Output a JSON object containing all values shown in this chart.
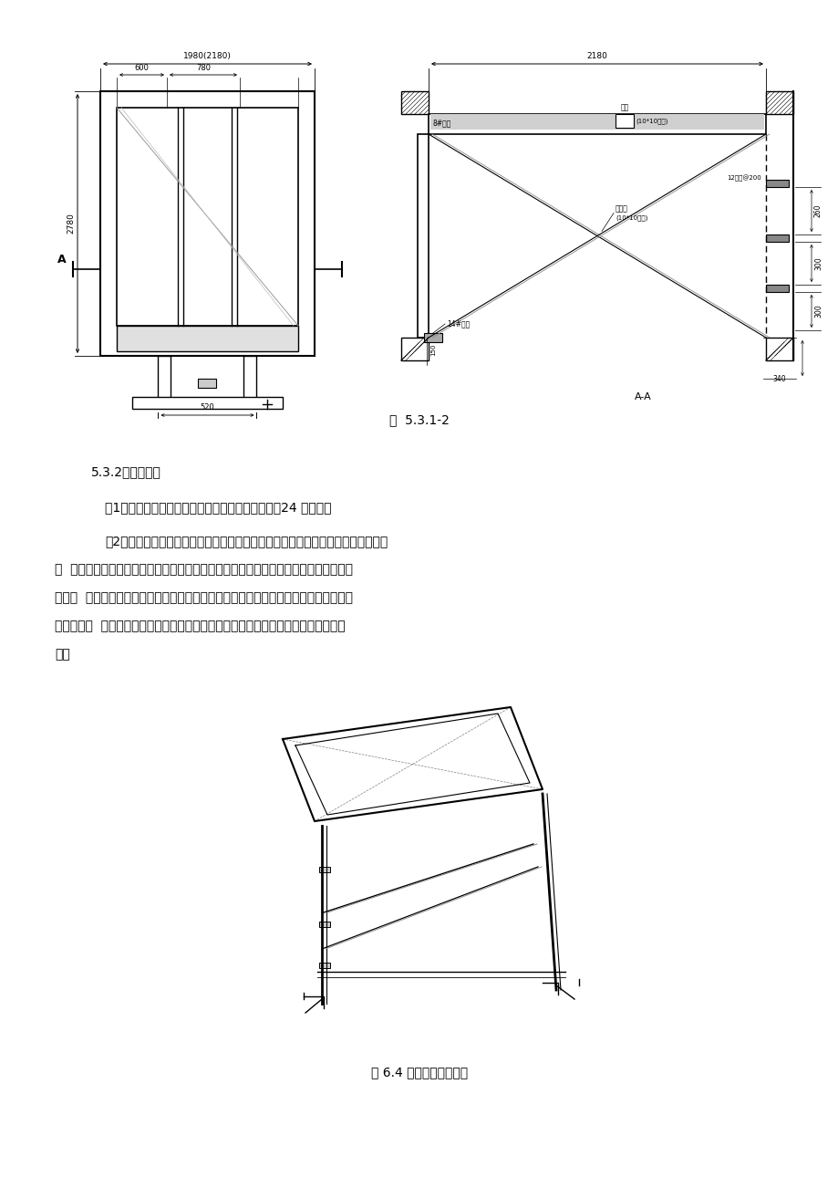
{
  "page_bg": "#ffffff",
  "fig_title1": "图  5.3.1-2",
  "fig_title2": "图 6.4 整体支架结构简图",
  "section_title": "5.3.2注意事项：",
  "para1": "（1）平台流转至上一层时应在上层墙体砼浇筑至少24 小时后；",
  "para2_line1": "（2）吊装时下层及上层均应有专人负责，准备好钢筋钩等物。下层重点是防止提升",
  "para2_line2": "过  程中支撑架下脚槽钢钩在电梯门洞上口（当平台吊钩定位于中间时，由于重心偏于电",
  "para2_line3": "梯门侧  的原因，提升时斜撑底脚会自动缩于井筒内，故一般不会存在上述问题）；上层",
  "para2_line4": "重点是在架  体吊升的过程中要及时用钢筋钩把下脚撑及时拉到位并顶紧门洞下口结构",
  "para2_line5": "面。",
  "font_family": "SimSun",
  "text_color": "#000000"
}
